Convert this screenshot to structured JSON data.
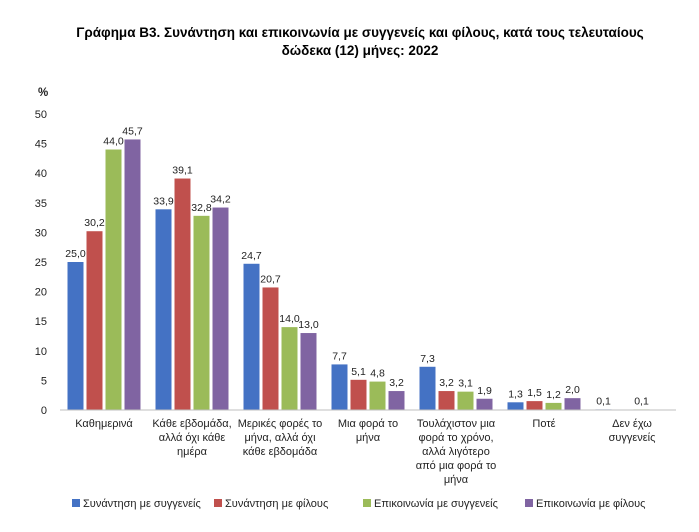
{
  "chart_data": {
    "type": "bar",
    "title_line1": "Γράφημα Β3. Συνάντηση και επικοινωνία με συγγενείς και φίλους, κατά τους τελευταίους",
    "title_line2": "δώδεκα (12) μήνες: 2022",
    "ylabel": "%",
    "xlabel": "",
    "ylim": [
      0,
      50
    ],
    "yticks": [
      0,
      5,
      10,
      15,
      20,
      25,
      30,
      35,
      40,
      45,
      50
    ],
    "grid": false,
    "legend_position": "bottom",
    "categories": [
      [
        "Καθημερινά"
      ],
      [
        "Κάθε εβδομάδα,",
        "αλλά όχι κάθε",
        "ημέρα"
      ],
      [
        "Μερικές φορές το",
        "μήνα, αλλά όχι",
        "κάθε εβδομάδα"
      ],
      [
        "Μια φορά το",
        "μήνα"
      ],
      [
        "Τουλάχιστον μια",
        "φορά το χρόνο,",
        "αλλά λιγότερο",
        "από μια φορά το",
        "μήνα"
      ],
      [
        "Ποτέ"
      ],
      [
        "Δεν έχω",
        "συγγενείς"
      ]
    ],
    "series": [
      {
        "name": "Συνάντηση με συγγενείς",
        "color": "#4472C4",
        "values": [
          25.0,
          33.9,
          24.7,
          7.7,
          7.3,
          1.3,
          0.1
        ]
      },
      {
        "name": "Συνάντηση με φίλους",
        "color": "#C0504D",
        "values": [
          30.2,
          39.1,
          20.7,
          5.1,
          3.2,
          1.5,
          null
        ]
      },
      {
        "name": "Επικοινωνία με συγγενείς",
        "color": "#9BBB59",
        "values": [
          44.0,
          32.8,
          14.0,
          4.8,
          3.1,
          1.2,
          0.1
        ]
      },
      {
        "name": "Επικοινωνία με φίλους",
        "color": "#8064A2",
        "values": [
          45.7,
          34.2,
          13.0,
          3.2,
          1.9,
          2.0,
          null
        ]
      }
    ]
  }
}
